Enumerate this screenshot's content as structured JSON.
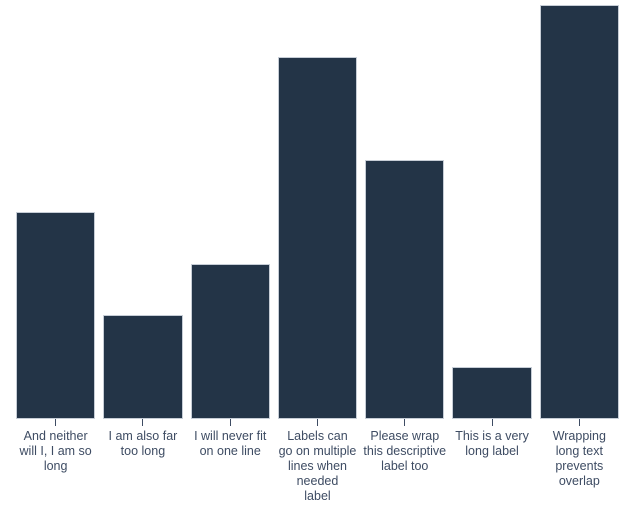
{
  "chart_data": {
    "type": "bar",
    "title": "",
    "xlabel": "",
    "ylabel": "",
    "categories": [
      "And neither will I, I am so long",
      "I am also far too long",
      "I will never fit on one line",
      "Labels can go on multiple lines when needed label",
      "Please wrap this descriptive label too",
      "This is a very long label",
      "Wrapping long text prevents overlap"
    ],
    "label_lines": [
      [
        "And neither",
        "will I, I am so",
        "long"
      ],
      [
        "I am also far",
        "too long"
      ],
      [
        "I will never fit",
        "on one line"
      ],
      [
        "Labels can",
        "go on multiple",
        "lines when",
        "needed",
        "label"
      ],
      [
        "Please wrap",
        "this descriptive",
        "label too"
      ],
      [
        "This is a very",
        "long label"
      ],
      [
        "Wrapping",
        "long text",
        "prevents",
        "overlap"
      ]
    ],
    "values": [
      4,
      2,
      3,
      7,
      5,
      1,
      8
    ],
    "ylim": [
      0,
      8
    ],
    "y_axis_visible": false,
    "x_axis_line_visible": false,
    "x_ticks_visible": true,
    "grid": false,
    "legend": false,
    "bar_color": "#233447",
    "bar_border_color": "#c6cdd6",
    "tick_color": "#3e4c63",
    "label_color": "#3e4c63",
    "background_color": "#ffffff"
  }
}
